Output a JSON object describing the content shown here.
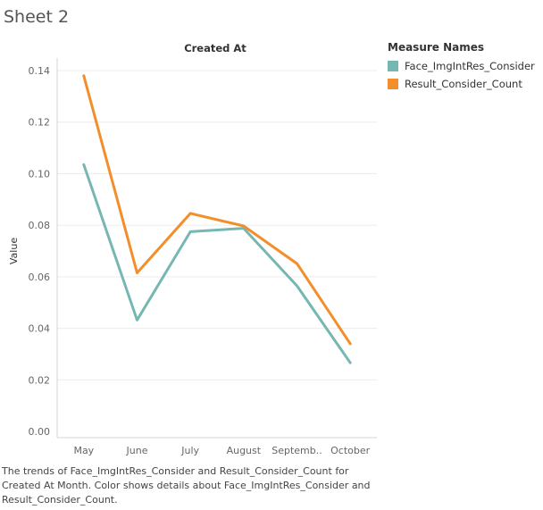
{
  "sheet_title": "Sheet 2",
  "caption": "The trends of Face_ImgIntRes_Consider and Result_Consider_Count for Created At Month.  Color shows details about Face_ImgIntRes_Consider and Result_Consider_Count.",
  "legend": {
    "title": "Measure Names",
    "items": [
      {
        "label": "Face_ImgIntRes_Consider",
        "color": "#76b7b2"
      },
      {
        "label": "Result_Consider_Count",
        "color": "#f28e2b"
      }
    ]
  },
  "chart_data": {
    "type": "line",
    "title": "Created At",
    "xlabel": "",
    "ylabel": "Value",
    "categories": [
      "May",
      "June",
      "July",
      "August",
      "Septemb..",
      "October"
    ],
    "ylim": [
      0,
      0.14
    ],
    "yticks": [
      0.0,
      0.02,
      0.04,
      0.06,
      0.08,
      0.1,
      0.12,
      0.14
    ],
    "ytick_labels": [
      "0.00",
      "0.02",
      "0.04",
      "0.06",
      "0.08",
      "0.10",
      "0.12",
      "0.14"
    ],
    "grid": true,
    "legend_position": "top-right",
    "series": [
      {
        "name": "Face_ImgIntRes_Consider",
        "color": "#76b7b2",
        "values": [
          0.1035,
          0.0432,
          0.0775,
          0.0788,
          0.0565,
          0.0266
        ]
      },
      {
        "name": "Result_Consider_Count",
        "color": "#f28e2b",
        "values": [
          0.138,
          0.0615,
          0.0846,
          0.0797,
          0.0651,
          0.034
        ]
      }
    ]
  }
}
